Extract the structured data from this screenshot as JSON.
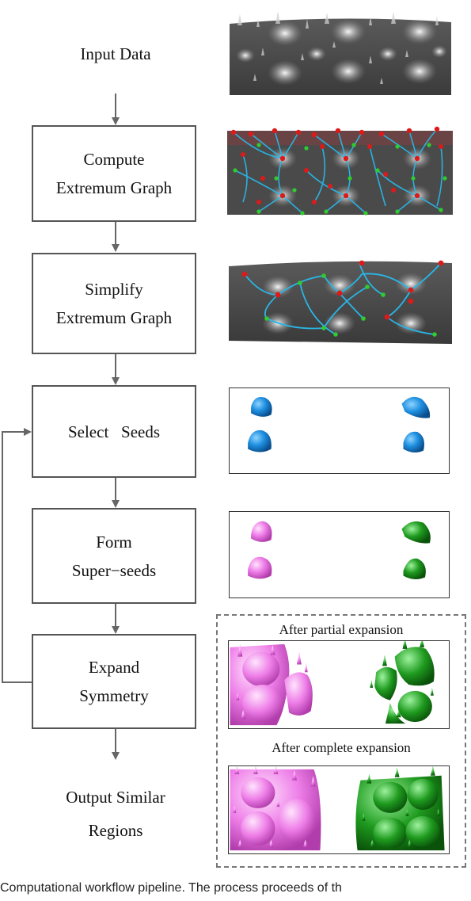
{
  "input": {
    "label": "Input Data"
  },
  "steps": [
    {
      "id": "compute",
      "lines": [
        "Compute",
        "Extremum Graph"
      ]
    },
    {
      "id": "simplify",
      "lines": [
        "Simplify",
        "Extremum Graph"
      ]
    },
    {
      "id": "select",
      "lines": [
        "Select   Seeds"
      ]
    },
    {
      "id": "form",
      "lines": [
        "Form",
        "Super−seeds"
      ]
    },
    {
      "id": "expand",
      "lines": [
        "Expand",
        "Symmetry"
      ]
    }
  ],
  "output": {
    "lines": [
      "Output Similar",
      "Regions"
    ]
  },
  "expansion": {
    "partial_label": "After partial expansion",
    "complete_label": "After complete expansion"
  },
  "caption": "Computational workflow pipeline. The process proceeds of th",
  "colors": {
    "arrow": "#666666",
    "graph_edge": "#29b6e6",
    "maxima": "#dd1a1a",
    "saddle": "#2ecc2e",
    "seed_blue": "#1e8fe0",
    "seed_pink": "#ee7ee8",
    "seed_green": "#1e9a1e"
  }
}
